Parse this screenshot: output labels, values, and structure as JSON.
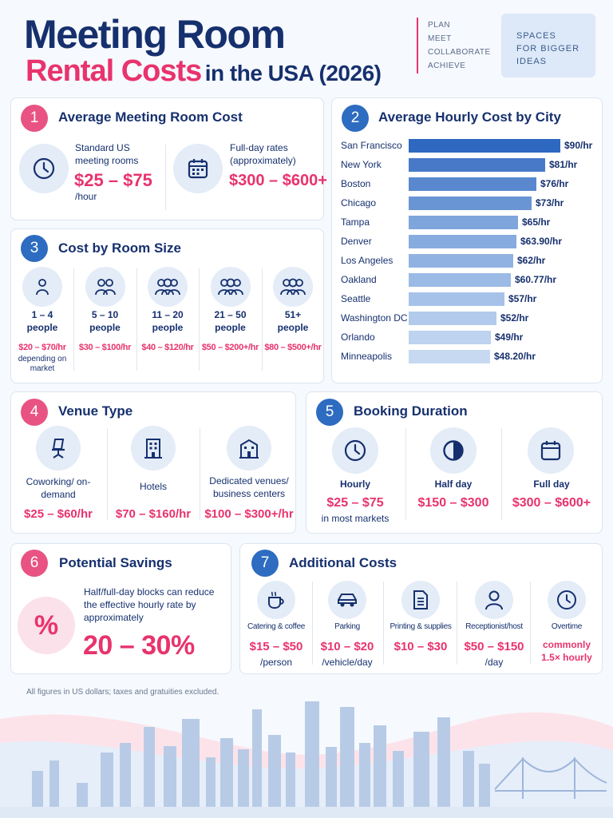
{
  "header": {
    "title_line1": "Meeting Room",
    "title_pink": "Rental Costs",
    "title_rest": "in the USA (2026)",
    "tagline": [
      "PLAN",
      "MEET",
      "COLLABORATE",
      "ACHIEVE"
    ],
    "slogan": [
      "SPACES",
      "FOR BIGGER",
      "IDEAS"
    ]
  },
  "colors": {
    "navy": "#16306e",
    "pink": "#e8336d",
    "blue": "#2d6cc0",
    "light_bg": "#f6f9fd"
  },
  "s1": {
    "num": "1",
    "title": "Average Meeting Room Cost",
    "left": {
      "label": "Standard US meeting rooms",
      "value": "$25 – $75",
      "unit": "/hour",
      "icon": "clock-icon"
    },
    "right": {
      "label": "Full-day rates (approximately)",
      "value": "$300 – $600+",
      "icon": "calendar-icon"
    }
  },
  "s2": {
    "num": "2",
    "title": "Average Hourly Cost by City"
  },
  "s3": {
    "num": "3",
    "title": "Cost by Room Size",
    "items": [
      {
        "size": "1 – 4",
        "unit": "people",
        "price": "$20 – $70/hr",
        "note": "depending on market"
      },
      {
        "size": "5 – 10",
        "unit": "people",
        "price": "$30 – $100/hr"
      },
      {
        "size": "11 – 20",
        "unit": "people",
        "price": "$40 – $120/hr"
      },
      {
        "size": "21 – 50",
        "unit": "people",
        "price": "$50 – $200+/hr"
      },
      {
        "size": "51+",
        "unit": "people",
        "price": "$80 – $500+/hr"
      }
    ]
  },
  "s4": {
    "num": "4",
    "title": "Venue Type",
    "items": [
      {
        "label": "Coworking/ on-demand",
        "price": "$25 – $60/hr",
        "icon": "office-chair-icon"
      },
      {
        "label": "Hotels",
        "price": "$70 – $160/hr",
        "icon": "hotel-building-icon"
      },
      {
        "label": "Dedicated venues/ business centers",
        "price": "$100 – $300+/hr",
        "icon": "venue-building-icon"
      }
    ]
  },
  "s5": {
    "num": "5",
    "title": "Booking Duration",
    "items": [
      {
        "label": "Hourly",
        "price": "$25 – $75",
        "note": "in most markets",
        "icon": "clock-icon"
      },
      {
        "label": "Half day",
        "price": "$150 – $300",
        "icon": "half-circle-icon"
      },
      {
        "label": "Full day",
        "price": "$300 – $600+",
        "icon": "calendar-icon"
      }
    ]
  },
  "s6": {
    "num": "6",
    "title": "Potential Savings",
    "symbol": "%",
    "text": "Half/full-day blocks can reduce the effective hourly rate by approximately",
    "value": "20 – 30%"
  },
  "s7": {
    "num": "7",
    "title": "Additional Costs",
    "items": [
      {
        "label": "Catering & coffee",
        "price": "$15 – $50",
        "unit": "/person",
        "icon": "coffee-cup-icon"
      },
      {
        "label": "Parking",
        "price": "$10 – $20",
        "unit": "/vehicle/day",
        "icon": "car-icon"
      },
      {
        "label": "Printing & supplies",
        "price": "$10 – $30",
        "icon": "document-icon"
      },
      {
        "label": "Receptionist/host",
        "price": "$50 – $150",
        "unit": "/day",
        "icon": "person-icon"
      },
      {
        "label": "Overtime",
        "price": "commonly",
        "unit": "1.5× hourly",
        "icon": "clock-icon"
      }
    ]
  },
  "footnote": "All figures in US dollars; taxes and gratuities excluded.",
  "chart_data": {
    "type": "bar",
    "orientation": "horizontal",
    "title": "Average Hourly Cost by City",
    "categories": [
      "San Francisco",
      "New York",
      "Boston",
      "Chicago",
      "Tampa",
      "Denver",
      "Los Angeles",
      "Oakland",
      "Seattle",
      "Washington DC",
      "Orlando",
      "Minneapolis"
    ],
    "values": [
      90,
      81,
      76,
      73,
      65,
      63.9,
      62,
      60.77,
      57,
      52,
      49,
      48.2
    ],
    "value_labels": [
      "$90/hr",
      "$81/hr",
      "$76/hr",
      "$73/hr",
      "$65/hr",
      "$63.90/hr",
      "$62/hr",
      "$60.77/hr",
      "$57/hr",
      "$52/hr",
      "$49/hr",
      "$48.20/hr"
    ]
  }
}
